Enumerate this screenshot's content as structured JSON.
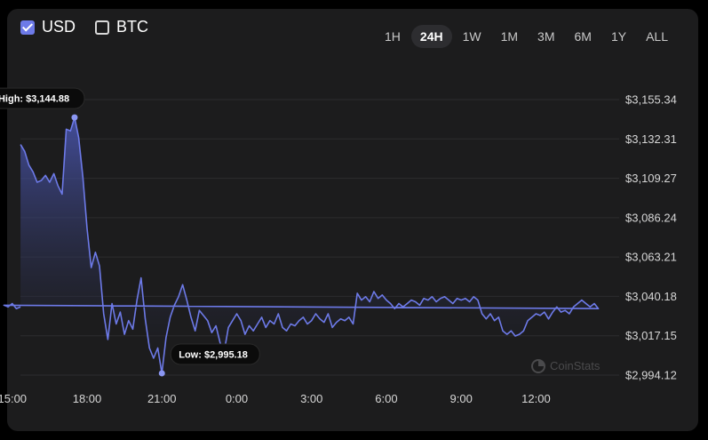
{
  "currency_toggle": {
    "usd_label": "USD",
    "usd_checked": true,
    "btc_label": "BTC",
    "btc_checked": false
  },
  "ranges": {
    "items": [
      "1H",
      "24H",
      "1W",
      "1M",
      "3M",
      "6M",
      "1Y",
      "ALL"
    ],
    "active": "24H"
  },
  "watermark": "CoinStats",
  "colors": {
    "line": "#6d7ae8",
    "accent": "#6d7ae8",
    "panel": "#1c1c1d"
  },
  "chart_data": {
    "type": "area",
    "x_ticks": [
      "18:00",
      "21:00",
      "0:00",
      "3:00",
      "6:00",
      "9:00",
      "12:00",
      "15:00"
    ],
    "y_ticks": [
      "$2,994.12",
      "$3,017.15",
      "$3,040.18",
      "$3,063.21",
      "$3,086.24",
      "$3,109.27",
      "$3,132.31",
      "$3,155.34"
    ],
    "ylim": [
      2994.12,
      3155.34
    ],
    "grid": true,
    "high_label": "High: $3,144.88",
    "low_label": "Low: $2,995.18",
    "high": {
      "time": "17:30",
      "value": 3144.88
    },
    "low": {
      "time": "21:00",
      "value": 2995.18
    },
    "series": [
      {
        "points": [
          [
            "15:20",
            3129
          ],
          [
            "15:30",
            3125
          ],
          [
            "15:40",
            3117
          ],
          [
            "15:50",
            3113
          ],
          [
            "16:00",
            3107
          ],
          [
            "16:10",
            3108
          ],
          [
            "16:20",
            3111
          ],
          [
            "16:30",
            3107
          ],
          [
            "16:40",
            3112
          ],
          [
            "16:50",
            3105
          ],
          [
            "17:00",
            3100
          ],
          [
            "17:10",
            3138
          ],
          [
            "17:20",
            3137
          ],
          [
            "17:30",
            3144.88
          ],
          [
            "17:40",
            3133
          ],
          [
            "17:50",
            3110
          ],
          [
            "18:00",
            3080
          ],
          [
            "18:10",
            3057
          ],
          [
            "18:20",
            3066
          ],
          [
            "18:30",
            3058
          ],
          [
            "18:40",
            3030
          ],
          [
            "18:50",
            3015
          ],
          [
            "19:00",
            3036
          ],
          [
            "19:10",
            3024
          ],
          [
            "19:20",
            3031
          ],
          [
            "19:30",
            3018
          ],
          [
            "19:40",
            3026
          ],
          [
            "19:50",
            3021
          ],
          [
            "20:00",
            3038
          ],
          [
            "20:10",
            3051
          ],
          [
            "20:20",
            3027
          ],
          [
            "20:30",
            3010
          ],
          [
            "20:40",
            3004
          ],
          [
            "20:50",
            3010
          ],
          [
            "21:00",
            2995.18
          ],
          [
            "21:10",
            3016
          ],
          [
            "21:20",
            3028
          ],
          [
            "21:30",
            3035
          ],
          [
            "21:40",
            3040
          ],
          [
            "21:50",
            3047
          ],
          [
            "22:00",
            3038
          ],
          [
            "22:10",
            3028
          ],
          [
            "22:20",
            3020
          ],
          [
            "22:30",
            3032
          ],
          [
            "22:40",
            3029
          ],
          [
            "22:50",
            3026
          ],
          [
            "23:00",
            3019
          ],
          [
            "23:10",
            3023
          ],
          [
            "23:20",
            3013
          ],
          [
            "23:30",
            3008
          ],
          [
            "23:40",
            3022
          ],
          [
            "23:50",
            3026
          ],
          [
            "0:00",
            3030
          ],
          [
            "0:10",
            3026
          ],
          [
            "0:20",
            3018
          ],
          [
            "0:30",
            3023
          ],
          [
            "0:40",
            3020
          ],
          [
            "0:50",
            3024
          ],
          [
            "1:00",
            3028
          ],
          [
            "1:10",
            3022
          ],
          [
            "1:20",
            3026
          ],
          [
            "1:30",
            3024
          ],
          [
            "1:40",
            3030
          ],
          [
            "1:50",
            3022
          ],
          [
            "2:00",
            3020
          ],
          [
            "2:10",
            3024
          ],
          [
            "2:20",
            3023
          ],
          [
            "2:30",
            3026
          ],
          [
            "2:40",
            3028
          ],
          [
            "2:50",
            3024
          ],
          [
            "3:00",
            3026
          ],
          [
            "3:10",
            3030
          ],
          [
            "3:20",
            3027
          ],
          [
            "3:30",
            3025
          ],
          [
            "3:40",
            3030
          ],
          [
            "3:50",
            3022
          ],
          [
            "4:00",
            3025
          ],
          [
            "4:10",
            3027
          ],
          [
            "4:20",
            3026
          ],
          [
            "4:30",
            3028
          ],
          [
            "4:40",
            3024
          ],
          [
            "4:50",
            3042
          ],
          [
            "5:00",
            3038
          ],
          [
            "5:10",
            3040
          ],
          [
            "5:20",
            3037
          ],
          [
            "5:30",
            3043
          ],
          [
            "5:40",
            3039
          ],
          [
            "5:50",
            3041
          ],
          [
            "6:00",
            3038
          ],
          [
            "6:10",
            3036
          ],
          [
            "6:20",
            3033
          ],
          [
            "6:30",
            3036
          ],
          [
            "6:40",
            3034
          ],
          [
            "6:50",
            3036
          ],
          [
            "7:00",
            3038
          ],
          [
            "7:10",
            3037
          ],
          [
            "7:20",
            3035
          ],
          [
            "7:30",
            3039
          ],
          [
            "7:40",
            3038
          ],
          [
            "7:50",
            3040
          ],
          [
            "8:00",
            3037
          ],
          [
            "8:10",
            3039
          ],
          [
            "8:20",
            3040
          ],
          [
            "8:30",
            3038
          ],
          [
            "8:40",
            3036
          ],
          [
            "8:50",
            3039
          ],
          [
            "9:00",
            3038
          ],
          [
            "9:10",
            3039
          ],
          [
            "9:20",
            3037
          ],
          [
            "9:30",
            3040
          ],
          [
            "9:40",
            3038
          ],
          [
            "9:50",
            3030
          ],
          [
            "10:00",
            3027
          ],
          [
            "10:10",
            3030
          ],
          [
            "10:20",
            3026
          ],
          [
            "10:30",
            3028
          ],
          [
            "10:40",
            3020
          ],
          [
            "10:50",
            3018
          ],
          [
            "11:00",
            3020
          ],
          [
            "11:10",
            3017
          ],
          [
            "11:20",
            3018
          ],
          [
            "11:30",
            3020
          ],
          [
            "11:40",
            3026
          ],
          [
            "11:50",
            3028
          ],
          [
            "12:00",
            3030
          ],
          [
            "12:10",
            3029
          ],
          [
            "12:20",
            3031
          ],
          [
            "12:30",
            3027
          ],
          [
            "12:40",
            3031
          ],
          [
            "12:50",
            3034
          ],
          [
            "13:00",
            3031
          ],
          [
            "13:10",
            3032
          ],
          [
            "13:20",
            3030
          ],
          [
            "13:30",
            3034
          ],
          [
            "13:40",
            3036
          ],
          [
            "13:50",
            3038
          ],
          [
            "14:00",
            3036
          ],
          [
            "14:10",
            3034
          ],
          [
            "14:20",
            3036
          ],
          [
            "14:30",
            3033
          ],
          [
            "14:40",
            3035
          ],
          [
            "14:50",
            3034
          ],
          [
            "15:00",
            3036
          ],
          [
            "15:10",
            3033
          ],
          [
            "15:20",
            3034
          ]
        ]
      }
    ]
  }
}
